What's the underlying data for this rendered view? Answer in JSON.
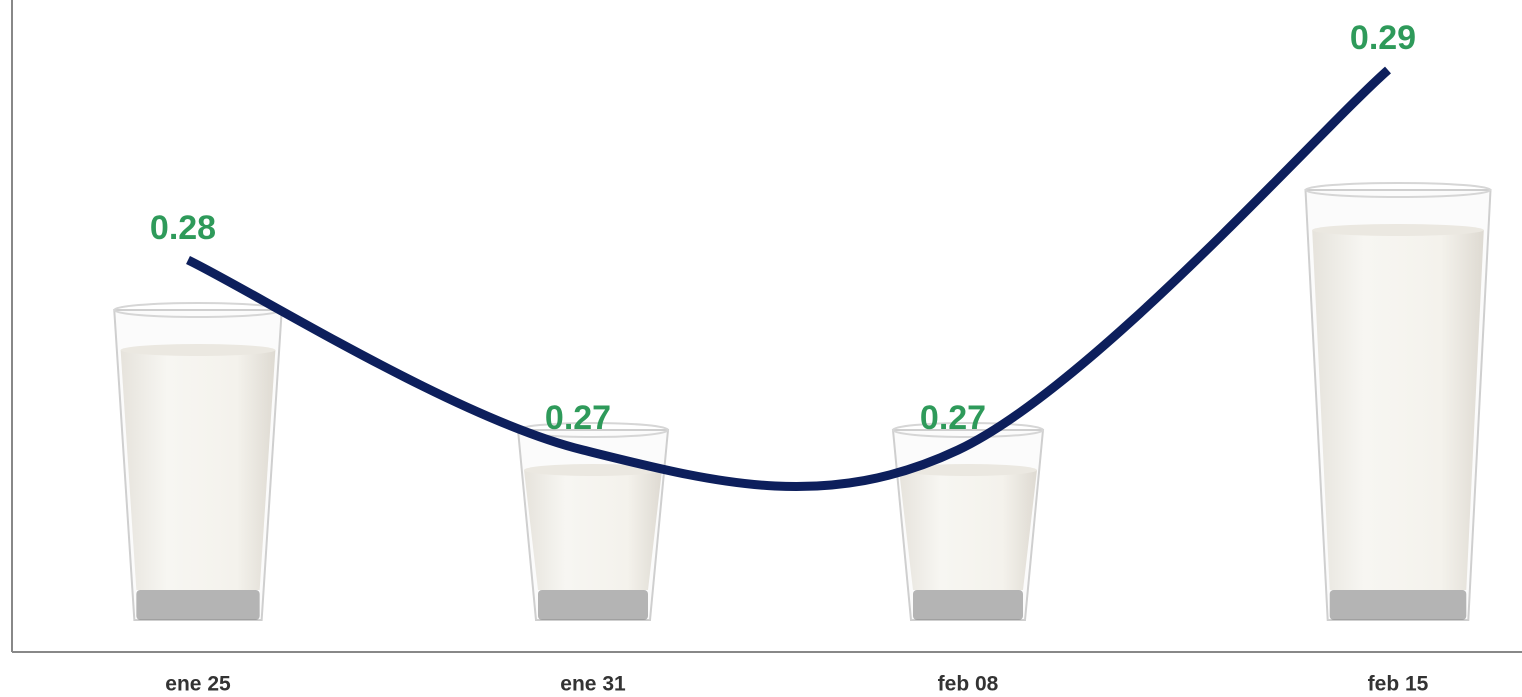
{
  "chart_data": {
    "type": "pictograph",
    "categories": [
      "ene 25",
      "ene 31",
      "feb 08",
      "feb 15"
    ],
    "values": [
      0.28,
      0.27,
      0.27,
      0.29
    ],
    "color": "#0d1f5c",
    "label_color": "#2e9a5a"
  }
}
